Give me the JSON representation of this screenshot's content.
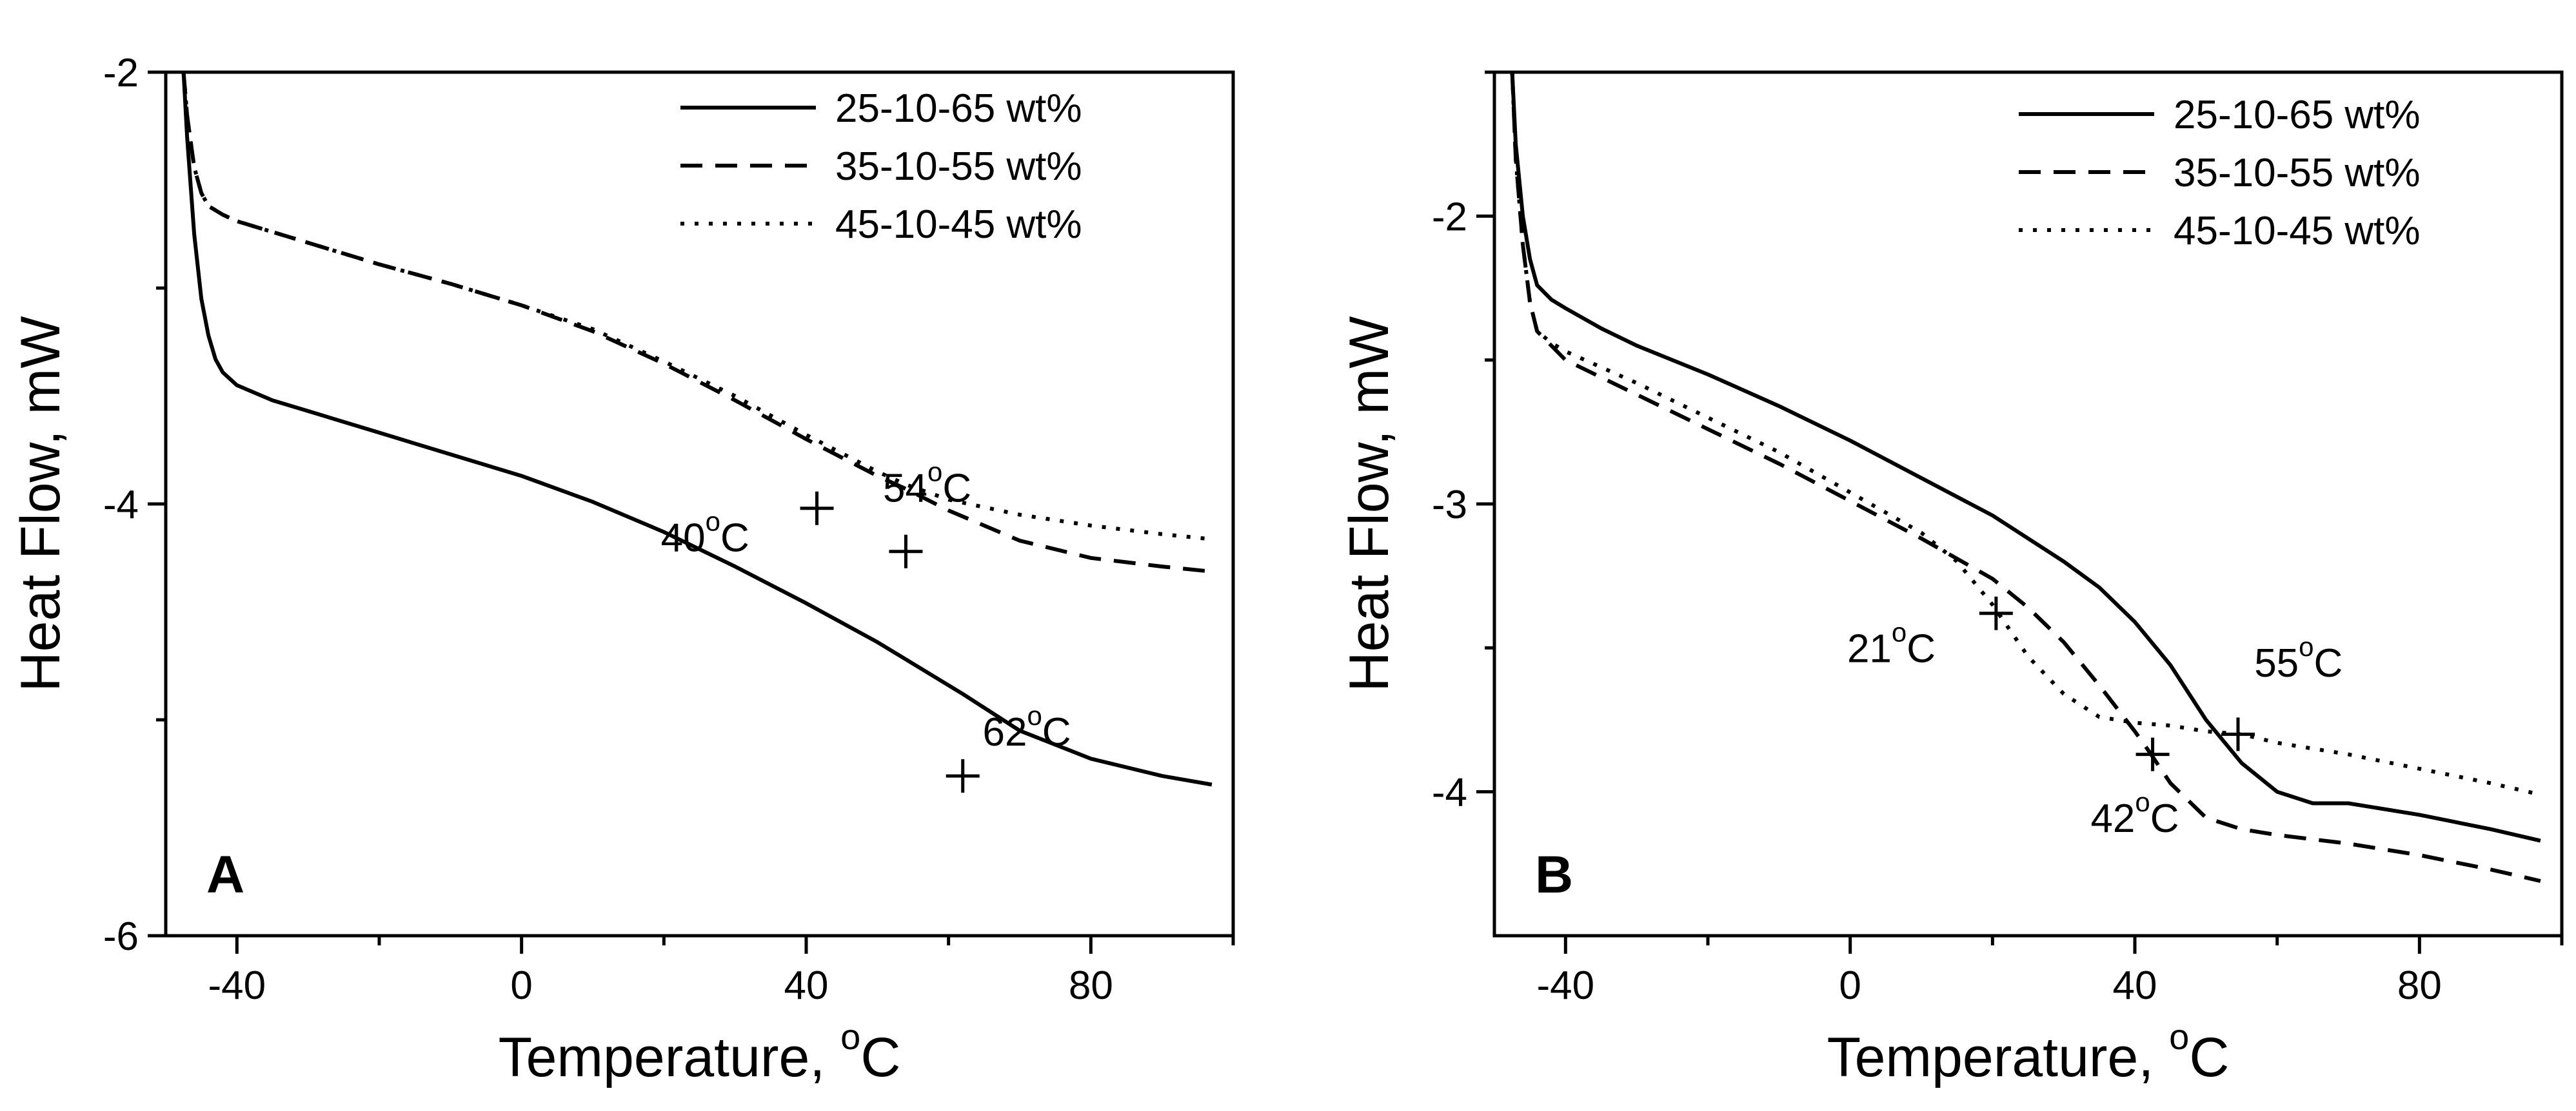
{
  "chart_data": [
    {
      "type": "line",
      "panel_label": "A",
      "xlabel_main": "Temperature, ",
      "xlabel_sup": "o",
      "xlabel_unit": "C",
      "ylabel": "Heat Flow, mW",
      "xlim": [
        -50,
        100
      ],
      "ylim": [
        -6,
        -2
      ],
      "xticks": [
        -40,
        0,
        40,
        80
      ],
      "xtick_labels": [
        "-40",
        "0",
        "40",
        "80"
      ],
      "yticks": [
        -6,
        -4,
        -2
      ],
      "ytick_labels": [
        "-6",
        "-4",
        "-2"
      ],
      "grid": false,
      "legend_position": "top-right",
      "series": [
        {
          "name": "25-10-65 wt%",
          "dash": "solid",
          "x": [
            -47.5,
            -47,
            -46,
            -45,
            -44,
            -43,
            -42,
            -40,
            -35,
            -30,
            -20,
            -10,
            0,
            10,
            20,
            30,
            40,
            50,
            60,
            62,
            70,
            80,
            90,
            97
          ],
          "y": [
            -2,
            -2.3,
            -2.75,
            -3.05,
            -3.22,
            -3.33,
            -3.39,
            -3.45,
            -3.52,
            -3.57,
            -3.67,
            -3.77,
            -3.87,
            -3.99,
            -4.13,
            -4.29,
            -4.46,
            -4.64,
            -4.84,
            -4.88,
            -5.05,
            -5.18,
            -5.26,
            -5.3
          ]
        },
        {
          "name": "35-10-55 wt%",
          "dash": "dashed",
          "x": [
            -47.5,
            -47,
            -46,
            -45,
            -44,
            -42,
            -40,
            -30,
            -20,
            -10,
            0,
            10,
            20,
            30,
            40,
            50,
            54,
            60,
            70,
            80,
            90,
            96
          ],
          "y": [
            -2,
            -2.2,
            -2.44,
            -2.56,
            -2.62,
            -2.66,
            -2.69,
            -2.79,
            -2.89,
            -2.98,
            -3.08,
            -3.2,
            -3.35,
            -3.52,
            -3.7,
            -3.87,
            -3.93,
            -4.03,
            -4.17,
            -4.25,
            -4.29,
            -4.31
          ]
        },
        {
          "name": "45-10-45 wt%",
          "dash": "dotted",
          "x": [
            -47.5,
            -47,
            -46,
            -45,
            -44,
            -42,
            -40,
            -30,
            -20,
            -10,
            0,
            10,
            20,
            30,
            40,
            50,
            54,
            60,
            70,
            80,
            90,
            96
          ],
          "y": [
            -2,
            -2.2,
            -2.44,
            -2.56,
            -2.62,
            -2.66,
            -2.69,
            -2.79,
            -2.89,
            -2.98,
            -3.08,
            -3.19,
            -3.34,
            -3.5,
            -3.68,
            -3.85,
            -3.91,
            -3.98,
            -4.05,
            -4.1,
            -4.14,
            -4.16
          ]
        }
      ],
      "markers": [
        {
          "x": 41.5,
          "y": -4.02,
          "text": "40",
          "unit": "C",
          "label_x": 32,
          "label_y": -4.22,
          "anchor": "end"
        },
        {
          "x": 54,
          "y": -4.22,
          "text": "54",
          "unit": "C",
          "label_x": 57,
          "label_y": -3.99,
          "anchor": "middle"
        },
        {
          "x": 62,
          "y": -5.26,
          "text": "62",
          "unit": "C",
          "label_x": 71,
          "label_y": -5.12,
          "anchor": "middle"
        }
      ]
    },
    {
      "type": "line",
      "panel_label": "B",
      "xlabel_main": "Temperature, ",
      "xlabel_sup": "o",
      "xlabel_unit": "C",
      "ylabel": "Heat Flow, mW",
      "xlim": [
        -50,
        100
      ],
      "ylim": [
        -4.5,
        -1.5
      ],
      "xticks": [
        -40,
        0,
        40,
        80
      ],
      "xtick_labels": [
        "-40",
        "0",
        "40",
        "80"
      ],
      "yticks": [
        -4,
        -3,
        -2
      ],
      "ytick_labels": [
        "-4",
        "-3",
        "-2"
      ],
      "grid": false,
      "legend_position": "top-right",
      "series": [
        {
          "name": "25-10-65 wt%",
          "dash": "solid",
          "x": [
            -47.5,
            -47,
            -46,
            -45,
            -44,
            -42,
            -40,
            -35,
            -30,
            -20,
            -10,
            0,
            10,
            20,
            30,
            35,
            40,
            45,
            50,
            55,
            60,
            65,
            70,
            80,
            90,
            97
          ],
          "y": [
            -1.5,
            -1.75,
            -2.0,
            -2.15,
            -2.24,
            -2.29,
            -2.32,
            -2.39,
            -2.45,
            -2.55,
            -2.66,
            -2.78,
            -2.91,
            -3.04,
            -3.2,
            -3.29,
            -3.41,
            -3.56,
            -3.75,
            -3.9,
            -4.0,
            -4.04,
            -4.04,
            -4.08,
            -4.13,
            -4.17
          ]
        },
        {
          "name": "35-10-55 wt%",
          "dash": "dashed",
          "x": [
            -47.5,
            -47,
            -46,
            -45,
            -44,
            -42,
            -40,
            -30,
            -20,
            -10,
            0,
            10,
            20,
            25,
            30,
            35,
            40,
            42,
            45,
            50,
            55,
            60,
            70,
            80,
            90,
            97
          ],
          "y": [
            -1.5,
            -1.8,
            -2.1,
            -2.3,
            -2.4,
            -2.45,
            -2.5,
            -2.62,
            -2.74,
            -2.86,
            -2.99,
            -3.12,
            -3.26,
            -3.36,
            -3.48,
            -3.63,
            -3.79,
            -3.86,
            -3.97,
            -4.09,
            -4.13,
            -4.15,
            -4.18,
            -4.22,
            -4.27,
            -4.31
          ]
        },
        {
          "name": "45-10-45 wt%",
          "dash": "dotted",
          "x": [
            -47.5,
            -47,
            -46,
            -45,
            -44,
            -42,
            -40,
            -30,
            -20,
            -10,
            0,
            10,
            15,
            20,
            25,
            30,
            35,
            40,
            45,
            50,
            55,
            60,
            70,
            80,
            90,
            97
          ],
          "y": [
            -1.5,
            -1.8,
            -2.1,
            -2.3,
            -2.4,
            -2.44,
            -2.47,
            -2.58,
            -2.7,
            -2.82,
            -2.96,
            -3.1,
            -3.2,
            -3.35,
            -3.53,
            -3.66,
            -3.74,
            -3.76,
            -3.77,
            -3.79,
            -3.8,
            -3.83,
            -3.87,
            -3.92,
            -3.97,
            -4.01
          ]
        }
      ],
      "markers": [
        {
          "x": 20.5,
          "y": -3.38,
          "text": "21",
          "unit": "C",
          "label_x": 12,
          "label_y": -3.55,
          "anchor": "end"
        },
        {
          "x": 42.5,
          "y": -3.87,
          "text": "42",
          "unit": "C",
          "label_x": 40,
          "label_y": -4.14,
          "anchor": "middle"
        },
        {
          "x": 54.5,
          "y": -3.8,
          "text": "55",
          "unit": "C",
          "label_x": 63,
          "label_y": -3.6,
          "anchor": "middle"
        }
      ]
    }
  ]
}
